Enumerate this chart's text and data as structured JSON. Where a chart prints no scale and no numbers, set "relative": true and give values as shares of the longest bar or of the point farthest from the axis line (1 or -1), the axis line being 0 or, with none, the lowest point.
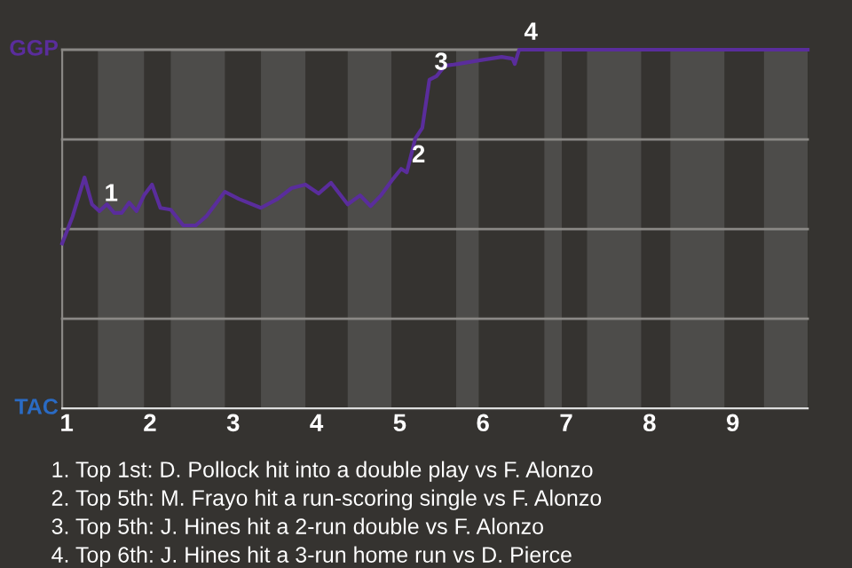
{
  "chart_data": {
    "type": "line",
    "relative": true,
    "x": [
      0.946,
      1.071,
      1.214,
      1.304,
      1.393,
      1.482,
      1.571,
      1.661,
      1.75,
      1.839,
      1.929,
      2.025,
      2.125,
      2.25,
      2.4,
      2.55,
      2.675,
      2.9,
      3.067,
      3.333,
      3.533,
      3.7,
      3.867,
      4.025,
      4.175,
      4.375,
      4.525,
      4.65,
      4.775,
      4.9,
      5.017,
      5.085,
      5.186,
      5.271,
      5.356,
      5.441,
      5.542,
      5.695,
      5.949,
      6.224,
      6.355,
      6.382,
      6.434,
      9.9
    ],
    "series": [
      {
        "color": "#5a2d9c",
        "values": [
          0.46,
          0.535,
          0.644,
          0.569,
          0.55,
          0.569,
          0.545,
          0.545,
          0.574,
          0.55,
          0.594,
          0.624,
          0.559,
          0.554,
          0.51,
          0.51,
          0.535,
          0.604,
          0.584,
          0.559,
          0.584,
          0.614,
          0.624,
          0.599,
          0.629,
          0.569,
          0.594,
          0.564,
          0.594,
          0.634,
          0.668,
          0.658,
          0.752,
          0.782,
          0.916,
          0.926,
          0.955,
          0.96,
          0.97,
          0.98,
          0.975,
          0.96,
          1,
          1
        ]
      }
    ],
    "xlim": [
      0.946,
      9.9
    ],
    "xticks": [
      1,
      2,
      3,
      4,
      5,
      6,
      7,
      8,
      9
    ],
    "bands": [
      {
        "axis": "x",
        "from": 1.375,
        "to": 1.929,
        "color": "#4d4c4a"
      },
      {
        "axis": "x",
        "from": 2.25,
        "to": 2.9,
        "color": "#4d4c4a"
      },
      {
        "axis": "x",
        "from": 3.333,
        "to": 3.867,
        "color": "#4d4c4a"
      },
      {
        "axis": "x",
        "from": 4.375,
        "to": 4.9,
        "color": "#4d4c4a"
      },
      {
        "axis": "x",
        "from": 5.678,
        "to": 5.949,
        "color": "#4d4c4a"
      },
      {
        "axis": "x",
        "from": 6.737,
        "to": 6.947,
        "color": "#4d4c4a"
      },
      {
        "axis": "x",
        "from": 7.25,
        "to": 7.9,
        "color": "#4d4c4a"
      },
      {
        "axis": "x",
        "from": 8.25,
        "to": 8.9,
        "color": "#4d4c4a"
      },
      {
        "axis": "x",
        "from": 9.375,
        "to": 9.9,
        "color": "#4d4c4a"
      }
    ],
    "ref_lines": [
      {
        "axis": "y",
        "value": 0.25,
        "color": "#8a8885"
      },
      {
        "axis": "y",
        "value": 0.5,
        "color": "#8a8885"
      },
      {
        "axis": "y",
        "value": 0.75,
        "color": "#8a8885"
      },
      {
        "axis": "y",
        "value": 1,
        "color": "#8a8885"
      }
    ],
    "annotations": [
      "GGP",
      "TAC",
      {
        "text": "1",
        "x": 1.393,
        "y": 0.55
      },
      {
        "text": "2",
        "x": 5.085,
        "y": 0.658
      },
      {
        "text": "3",
        "x": 5.356,
        "y": 0.916
      },
      {
        "text": "4",
        "x": 6.434,
        "y": 1
      },
      "1. Top 1st: D. Pollock hit into a double play vs F. Alonzo",
      "2. Top 5th: M. Frayo hit a run-scoring single vs F. Alonzo",
      "3. Top 5th: J. Hines hit a 2-run double vs F. Alonzo",
      "4. Top 6th: J. Hines hit a 3-run home run vs D. Pierce"
    ],
    "tick_labels": "x"
  }
}
